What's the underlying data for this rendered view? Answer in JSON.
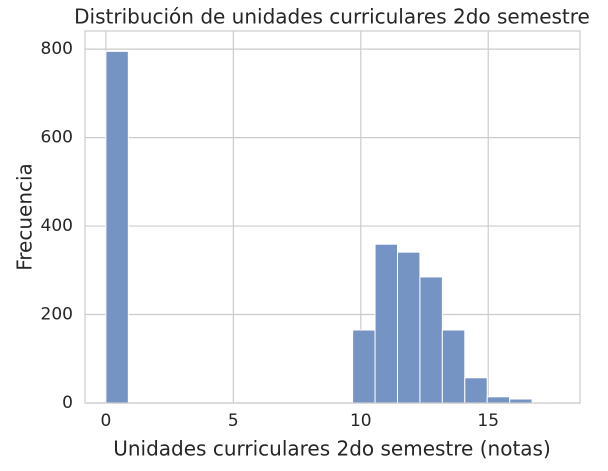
{
  "chart_data": {
    "type": "histogram",
    "title": "Distribución de unidades curriculares 2do semestre",
    "xlabel": "Unidades curriculares 2do semestre (notas)",
    "ylabel": "Frecuencia",
    "bins": [
      0,
      0.88,
      1.76,
      2.64,
      3.52,
      4.4,
      5.28,
      6.16,
      7.04,
      7.92,
      8.8,
      9.68,
      10.56,
      11.44,
      12.32,
      13.2,
      14.08,
      14.96,
      15.84,
      16.72,
      17.6
    ],
    "values": [
      795,
      0,
      0,
      0,
      0,
      0,
      0,
      0,
      0,
      0,
      0,
      165,
      359,
      341,
      285,
      165,
      57,
      14,
      9,
      2
    ],
    "color": "#7594c4",
    "xlim": [
      -0.82,
      18.6
    ],
    "xticks": [
      0,
      5,
      10,
      15
    ],
    "ylim": [
      0,
      841
    ],
    "yticks": [
      0,
      200,
      400,
      600,
      800
    ],
    "grid": true
  }
}
